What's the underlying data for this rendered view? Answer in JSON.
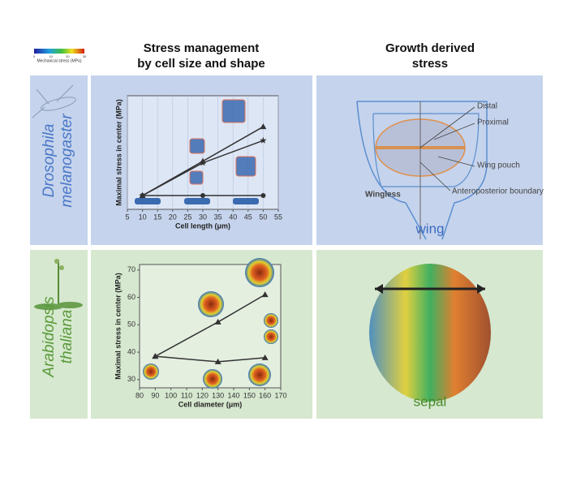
{
  "figure": {
    "headers": [
      "Stress management\nby cell size and shape",
      "Growth derived\nstress"
    ],
    "colorbar": {
      "title": "Mechanical stress (MPa)",
      "ticks": [
        0,
        10,
        20,
        30
      ]
    },
    "rows": [
      {
        "organism": [
          "Drosophila",
          "melanogaster"
        ],
        "caption": "wing",
        "labels": [
          "Distal",
          "Proximal",
          "Wing pouch",
          "Wingless",
          "Anteroposterior boundary"
        ]
      },
      {
        "organism": [
          "Arabidopsis",
          "thaliana"
        ],
        "caption": "sepal"
      }
    ]
  },
  "chart_data": [
    {
      "type": "line",
      "x_label": "Cell length (μm)",
      "y_label": "Maximal stress in center (MPa)",
      "x": [
        10,
        30,
        50
      ],
      "xlim": [
        5,
        55
      ],
      "xticks": [
        5,
        10,
        15,
        20,
        25,
        30,
        35,
        40,
        45,
        50,
        55
      ],
      "ylim": [
        3,
        36
      ],
      "grid": true,
      "series": [
        {
          "color": "#333333",
          "marker": "triangle",
          "values": [
            7,
            17,
            27
          ]
        },
        {
          "color": "#333333",
          "marker": "star",
          "values": [
            7,
            16.5,
            23
          ]
        },
        {
          "color": "#333333",
          "marker": "circle",
          "values": [
            7,
            7,
            7
          ]
        }
      ]
    },
    {
      "type": "line",
      "x_label": "Cell diameter (μm)",
      "y_label": "Maximal stress in center (MPa)",
      "x": [
        90,
        130,
        160
      ],
      "xlim": [
        80,
        170
      ],
      "xticks": [
        80,
        90,
        100,
        110,
        120,
        130,
        140,
        150,
        160,
        170
      ],
      "ylim": [
        27,
        72
      ],
      "yticks": [
        30,
        40,
        50,
        60,
        70
      ],
      "grid": false,
      "series": [
        {
          "color": "#333333",
          "marker": "triangle",
          "values": [
            38.5,
            51,
            61
          ]
        },
        {
          "color": "#333333",
          "marker": "triangle",
          "values": [
            38.5,
            36.5,
            38
          ]
        }
      ]
    }
  ]
}
